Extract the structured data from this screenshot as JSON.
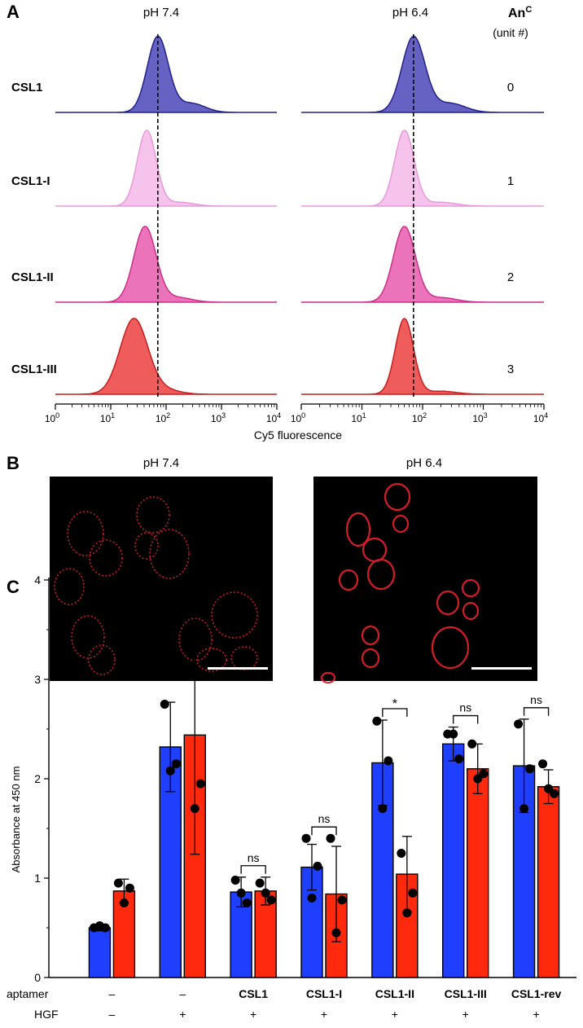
{
  "panels": {
    "a_letter": "A",
    "b_letter": "B",
    "c_letter": "C"
  },
  "panel_a": {
    "col_left_title": "pH 7.4",
    "col_right_title": "pH 6.4",
    "an_header_main": "An",
    "an_header_sup": "C",
    "an_header_sub": "(unit #)",
    "xlabel": "Cy5 fluorescence",
    "xticks": [
      {
        "base": "10",
        "exp": "0"
      },
      {
        "base": "10",
        "exp": "1"
      },
      {
        "base": "10",
        "exp": "2"
      },
      {
        "base": "10",
        "exp": "3"
      },
      {
        "base": "10",
        "exp": "4"
      }
    ],
    "rows": [
      {
        "name": "CSL1",
        "an": "0",
        "fill": "#4a47b8",
        "stroke": "#22208a",
        "opacity": 0.85,
        "left": {
          "peak_log": 1.85,
          "sigma": 0.19,
          "tail": 0.12
        },
        "right": {
          "peak_log": 1.85,
          "sigma": 0.19,
          "tail": 0.12
        }
      },
      {
        "name": "CSL1-I",
        "an": "1",
        "fill": "#f5b8ea",
        "stroke": "#e79ad9",
        "opacity": 0.85,
        "left": {
          "peak_log": 1.65,
          "sigma": 0.17,
          "tail": 0.05
        },
        "right": {
          "peak_log": 1.7,
          "sigma": 0.16,
          "tail": 0.05
        }
      },
      {
        "name": "CSL1-II",
        "an": "2",
        "fill": "#e85aad",
        "stroke": "#cc2f8b",
        "opacity": 0.85,
        "left": {
          "peak_log": 1.62,
          "sigma": 0.2,
          "tail": 0.06
        },
        "right": {
          "peak_log": 1.7,
          "sigma": 0.18,
          "tail": 0.06
        }
      },
      {
        "name": "CSL1-III",
        "an": "3",
        "fill": "#ec4040",
        "stroke": "#c41e1e",
        "opacity": 0.85,
        "left": {
          "peak_log": 1.42,
          "sigma": 0.25,
          "tail": 0.05
        },
        "right": {
          "peak_log": 1.7,
          "sigma": 0.15,
          "tail": 0.04
        }
      }
    ],
    "dashed_line_log": 1.85
  },
  "panel_b": {
    "left_title": "pH 7.4",
    "right_title": "pH 6.4"
  },
  "chart_data": {
    "type": "bar",
    "ylabel": "Absorbance at 450 nm",
    "ylim": [
      0,
      4
    ],
    "yticks": [
      "0",
      "1",
      "2",
      "3",
      "4"
    ],
    "row_labels": {
      "aptamer": "aptamer",
      "hgf": "HGF"
    },
    "categories": [
      {
        "aptamer": "–",
        "hgf": "–",
        "bold": false
      },
      {
        "aptamer": "–",
        "hgf": "+",
        "bold": false
      },
      {
        "aptamer": "CSL1",
        "hgf": "+",
        "bold": true
      },
      {
        "aptamer": "CSL1-I",
        "hgf": "+",
        "bold": true
      },
      {
        "aptamer": "CSL1-II",
        "hgf": "+",
        "bold": true
      },
      {
        "aptamer": "CSL1-III",
        "hgf": "+",
        "bold": true
      },
      {
        "aptamer": "CSL1-rev",
        "hgf": "+",
        "bold": true
      }
    ],
    "series": [
      {
        "color": "#1f3fff",
        "values": [
          0.5,
          2.32,
          0.86,
          1.11,
          2.16,
          2.35,
          2.13
        ],
        "errors": [
          0.03,
          0.45,
          0.15,
          0.23,
          0.43,
          0.17,
          0.47
        ],
        "points": [
          [
            0.5,
            0.5,
            0.52
          ],
          [
            2.75,
            2.15,
            2.08
          ],
          [
            0.98,
            0.75,
            0.85
          ],
          [
            1.4,
            1.12,
            0.8
          ],
          [
            2.58,
            2.18,
            1.7
          ],
          [
            2.45,
            2.2,
            2.45
          ],
          [
            2.55,
            2.1,
            1.7
          ]
        ]
      },
      {
        "color": "#ff2a0e",
        "values": [
          0.87,
          2.44,
          0.87,
          0.84,
          1.04,
          2.1,
          1.92
        ],
        "errors": [
          0.12,
          1.2,
          0.14,
          0.48,
          0.38,
          0.25,
          0.17
        ],
        "points": [
          [
            0.95,
            0.9,
            0.75
          ],
          [
            3.8,
            1.95,
            1.7
          ],
          [
            0.95,
            0.78,
            0.85
          ],
          [
            1.4,
            0.78,
            0.45
          ],
          [
            1.25,
            0.85,
            0.65
          ],
          [
            2.35,
            2.05,
            2.0
          ],
          [
            2.15,
            1.85,
            1.9
          ]
        ]
      }
    ],
    "annotations": [
      {
        "index": 2,
        "text": "ns"
      },
      {
        "index": 3,
        "text": "ns"
      },
      {
        "index": 4,
        "text": "*"
      },
      {
        "index": 5,
        "text": "ns"
      },
      {
        "index": 6,
        "text": "ns"
      }
    ]
  }
}
